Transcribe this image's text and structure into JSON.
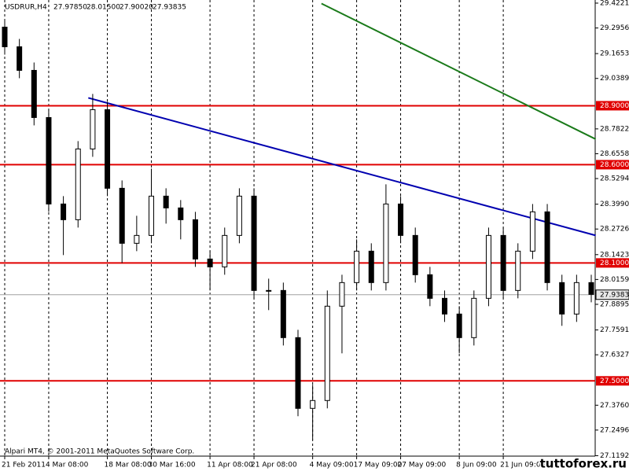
{
  "chart_data": {
    "type": "candlestick",
    "title": "USDRUR,H4",
    "quote": [
      {
        "value": 27.9785,
        "label": "27.97850"
      },
      {
        "value": 28.015,
        "label": "28.01500"
      },
      {
        "value": 27.9002,
        "label": "27.90020"
      },
      {
        "value": 27.93835,
        "label": "27.93835"
      }
    ],
    "footer": "Alpari MT4, © 2001-2011 MetaQuotes Software Corp.",
    "watermark": "tuttoforex.ru",
    "categories": [
      "21 Feb 2011",
      null,
      null,
      "4 Mar 08:00",
      null,
      null,
      null,
      "18 Mar 08:00",
      null,
      null,
      "30 Mar 16:00",
      null,
      null,
      null,
      "11 Apr 08:00",
      null,
      null,
      "21 Apr 08:00",
      null,
      null,
      null,
      "4 May 09:00",
      null,
      null,
      "17 May 09:00",
      null,
      null,
      "27 May 09:00",
      null,
      null,
      null,
      "8 Jun 09:00",
      null,
      null,
      "21 Jun 09:00",
      null,
      null,
      null,
      null,
      null,
      null
    ],
    "open": [
      29.3,
      29.2,
      29.08,
      28.84,
      28.4,
      28.32,
      28.68,
      28.88,
      28.48,
      28.2,
      28.24,
      28.44,
      28.38,
      28.32,
      28.12,
      28.08,
      28.24,
      28.44,
      27.96,
      27.96,
      27.72,
      27.36,
      27.4,
      27.88,
      28.0,
      28.16,
      28.0,
      28.4,
      28.24,
      28.04,
      27.92,
      27.84,
      27.72,
      27.92,
      28.24,
      27.96,
      28.16,
      28.36,
      28.0,
      27.84,
      28.0
    ],
    "high": [
      29.34,
      29.24,
      29.12,
      28.88,
      28.44,
      28.72,
      28.96,
      28.92,
      28.52,
      28.34,
      28.58,
      28.48,
      28.42,
      28.36,
      28.16,
      28.28,
      28.48,
      28.48,
      28.02,
      28.0,
      27.76,
      27.48,
      27.96,
      28.04,
      28.22,
      28.2,
      28.5,
      28.44,
      28.28,
      28.08,
      27.96,
      27.88,
      27.96,
      28.28,
      28.28,
      28.2,
      28.4,
      28.4,
      28.04,
      28.04,
      28.04
    ],
    "low": [
      29.16,
      29.04,
      28.8,
      28.36,
      28.14,
      28.28,
      28.64,
      28.44,
      28.1,
      28.16,
      28.2,
      28.3,
      28.22,
      28.08,
      27.96,
      28.04,
      28.2,
      27.92,
      27.86,
      27.68,
      27.32,
      27.2,
      27.36,
      27.64,
      27.96,
      27.96,
      27.96,
      28.2,
      28.0,
      27.88,
      27.8,
      27.64,
      27.68,
      27.88,
      27.92,
      27.92,
      28.12,
      27.96,
      27.78,
      27.8,
      27.9
    ],
    "close": [
      29.2,
      29.08,
      28.84,
      28.4,
      28.32,
      28.68,
      28.88,
      28.48,
      28.2,
      28.24,
      28.44,
      28.38,
      28.32,
      28.12,
      28.08,
      28.24,
      28.44,
      27.96,
      27.96,
      27.72,
      27.36,
      27.4,
      27.88,
      28.0,
      28.16,
      28.0,
      28.4,
      28.24,
      28.04,
      27.92,
      27.84,
      27.72,
      27.92,
      28.24,
      27.96,
      28.16,
      28.36,
      28.0,
      27.84,
      28.0,
      27.94
    ],
    "ylim": [
      27.117,
      29.438
    ],
    "yticks": [
      29.4221,
      29.2956,
      29.1653,
      {
        "value": 29.0389,
        "label": "29.0389"
      },
      28.7822,
      28.6558,
      28.5294,
      {
        "value": 28.399,
        "label": "28.3990"
      },
      28.2726,
      28.1423,
      28.0159,
      27.8895,
      27.7591,
      27.6327,
      {
        "value": 27.376,
        "label": "27.3760"
      },
      27.2496,
      27.1192
    ],
    "grid": true,
    "levels": [
      {
        "value": 28.9,
        "label": "28.9000",
        "color": "#e00000"
      },
      {
        "value": 28.6,
        "label": "28.6000",
        "color": "#e00000"
      },
      {
        "value": 28.1,
        "label": "28.1000",
        "color": "#e00000"
      },
      {
        "value": 27.5,
        "label": "27.5000",
        "color": "#e00000"
      }
    ],
    "current": {
      "value": 27.9383,
      "label": "27.9383",
      "color": "#a0a0a0"
    },
    "trendlines": [
      {
        "x": [
          5.7,
          40.3
        ],
        "values": [
          28.94,
          28.24
        ],
        "color": "#0000b0"
      },
      {
        "x": [
          21.6,
          40.3
        ],
        "values": [
          29.42,
          28.73
        ],
        "color": "#1a7a1a"
      }
    ]
  }
}
